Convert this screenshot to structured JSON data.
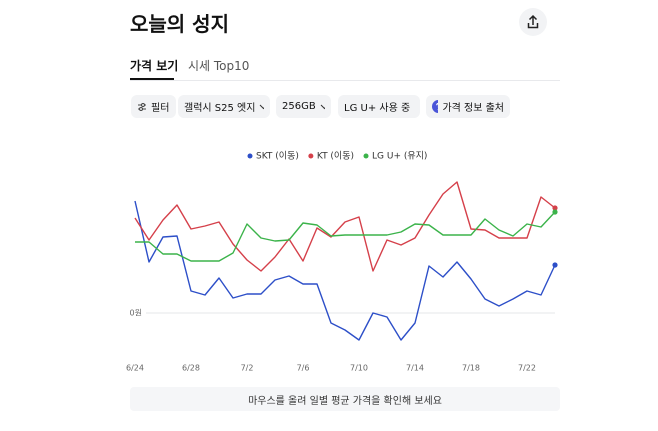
{
  "header": {
    "title": "오늘의 성지"
  },
  "tabs": [
    "가격 보기",
    "시세 Top10"
  ],
  "filters": {
    "filter": "필터",
    "model": "갤럭시 S25 엣지",
    "storage": "256GB",
    "carrier": "LG U+ 사용 중",
    "source": "가격 정보 출처"
  },
  "hint": "마우스를 올려 일별 평균 가격을 확인해 보세요",
  "chart_data": {
    "type": "line",
    "categories": [
      "6/24",
      null,
      null,
      null,
      "6/28",
      null,
      null,
      null,
      "7/2",
      null,
      null,
      null,
      "7/6",
      null,
      null,
      null,
      "7/10",
      null,
      null,
      null,
      "7/14",
      null,
      null,
      null,
      "7/18",
      null,
      null,
      null,
      "7/22",
      null,
      null
    ],
    "series": [
      {
        "name": "SKT (이동)",
        "color": "#2d4fc8",
        "values": [
          112,
          51,
          76,
          77,
          22,
          18,
          35,
          15,
          19,
          19,
          33,
          37,
          29,
          29,
          -10,
          -17,
          -27,
          0,
          -4,
          -27,
          -10,
          47,
          36,
          51,
          34,
          14,
          7,
          14,
          22,
          18,
          48
        ]
      },
      {
        "name": "KT (이동)",
        "color": "#d5404a",
        "values": [
          95,
          73,
          93,
          108,
          84,
          87,
          91,
          69,
          53,
          42,
          56,
          74,
          52,
          85,
          76,
          91,
          96,
          42,
          73,
          68,
          75,
          98,
          119,
          131,
          84,
          83,
          75,
          75,
          75,
          116,
          105
        ]
      },
      {
        "name": "LG U+ (유지)",
        "color": "#3bb34a",
        "values": [
          71,
          71,
          59,
          59,
          52,
          52,
          52,
          60,
          89,
          75,
          72,
          73,
          90,
          88,
          77,
          78,
          78,
          78,
          78,
          81,
          89,
          88,
          78,
          78,
          78,
          94,
          83,
          77,
          89,
          86,
          101
        ]
      }
    ],
    "ylim": [
      -37,
      133
    ],
    "yticks": [
      {
        "value": 0,
        "label": "0원"
      }
    ],
    "grid": true
  }
}
